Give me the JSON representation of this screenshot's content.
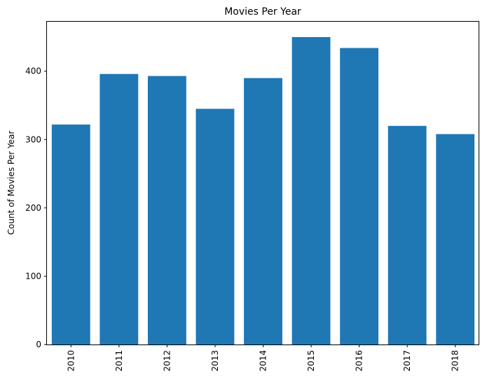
{
  "chart_data": {
    "type": "bar",
    "title": "Movies Per Year",
    "xlabel": "",
    "ylabel": "Count of Movies Per Year",
    "categories": [
      "2010",
      "2011",
      "2012",
      "2013",
      "2014",
      "2015",
      "2016",
      "2017",
      "2018"
    ],
    "values": [
      322,
      396,
      393,
      345,
      390,
      450,
      434,
      320,
      308
    ],
    "ylim": [
      0,
      472.5
    ],
    "yticks": [
      0,
      100,
      200,
      300,
      400
    ],
    "grid": false,
    "bar_color": "#1f77b4",
    "x_tick_rotation": "vertical"
  }
}
